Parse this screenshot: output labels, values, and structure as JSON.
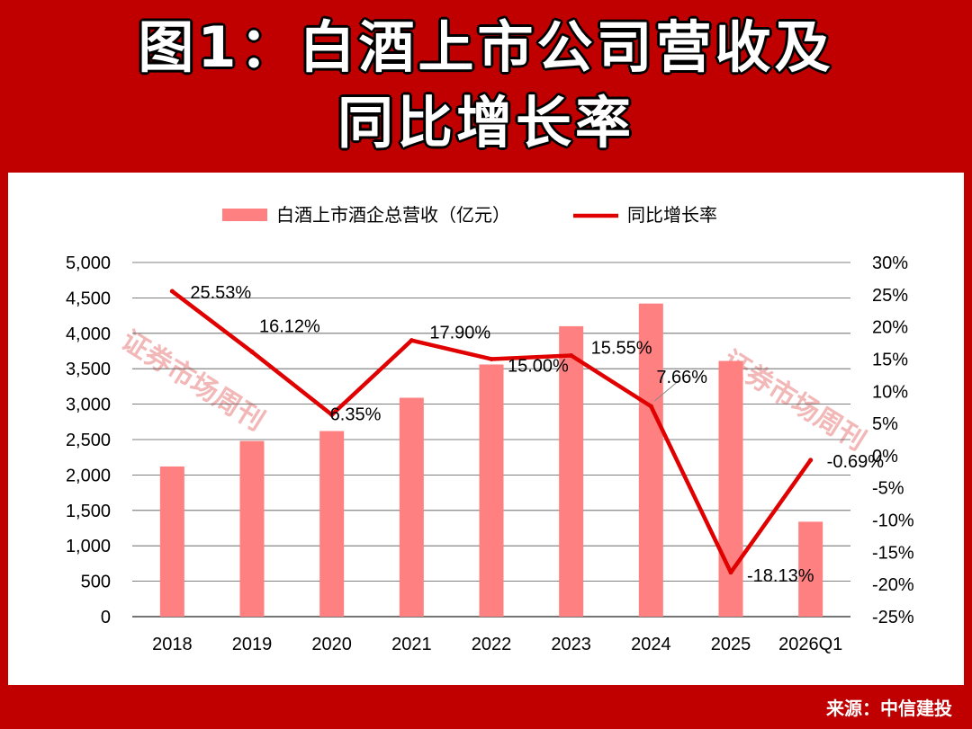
{
  "header": {
    "title_line1": "图1：白酒上市公司营收及",
    "title_line2": "同比增长率"
  },
  "footer": {
    "source": "来源：中信建投"
  },
  "watermark": "证券市场周刊",
  "colors": {
    "frame": "#c00000",
    "bar": "#ff8080",
    "line": "#e00000",
    "grid": "#333333"
  },
  "chart_data": {
    "type": "bar",
    "categories": [
      "2018",
      "2019",
      "2020",
      "2021",
      "2022",
      "2023",
      "2024",
      "2025",
      "2026Q1"
    ],
    "series": [
      {
        "name": "白酒上市酒企总营收（亿元）",
        "type": "bar",
        "axis": "left",
        "values": [
          2120,
          2480,
          2620,
          3090,
          3560,
          4100,
          4420,
          3610,
          1340
        ]
      },
      {
        "name": "同比增长率",
        "type": "line",
        "axis": "right",
        "values": [
          25.53,
          16.12,
          6.35,
          17.9,
          15.0,
          15.55,
          7.66,
          -18.13,
          -0.69
        ],
        "labels": [
          "25.53%",
          "16.12%",
          "6.35%",
          "17.90%",
          "15.00%",
          "15.55%",
          "7.66%",
          "-18.13%",
          "-0.69%"
        ]
      }
    ],
    "y_left": {
      "min": 0,
      "max": 5000,
      "step": 500,
      "ticks": [
        "0",
        "500",
        "1,000",
        "1,500",
        "2,000",
        "2,500",
        "3,000",
        "3,500",
        "4,000",
        "4,500",
        "5,000"
      ]
    },
    "y_right": {
      "min": -25,
      "max": 30,
      "step": 5,
      "ticks": [
        "-25%",
        "-20%",
        "-15%",
        "-10%",
        "-5%",
        "0%",
        "5%",
        "10%",
        "15%",
        "20%",
        "25%",
        "30%"
      ]
    },
    "legend_position": "top",
    "grid": true
  }
}
